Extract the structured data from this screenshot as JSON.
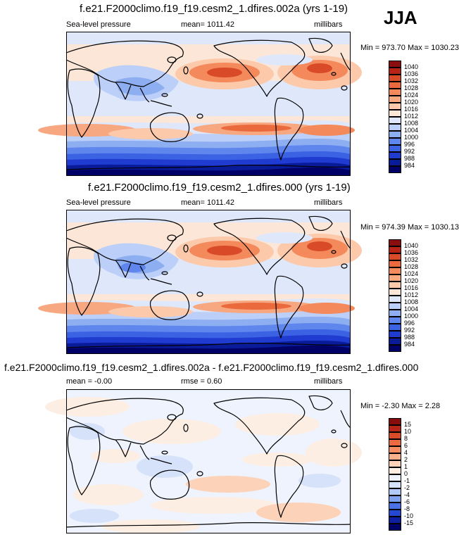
{
  "season": "JJA",
  "colors": {
    "pressure": [
      "#000066",
      "#0a1b9a",
      "#1f3bd0",
      "#3a62e3",
      "#5f86ec",
      "#8eaef2",
      "#bccff8",
      "#dfe8fb",
      "#fbe6d8",
      "#fcc9aa",
      "#f8a880",
      "#f48a5c",
      "#ea6a3e",
      "#d84a28",
      "#b82317",
      "#8a0e0e"
    ],
    "diff": [
      "#000066",
      "#0d1f9e",
      "#2547d1",
      "#4a71e6",
      "#7ea0ef",
      "#b2c8f6",
      "#d6e2fa",
      "#eef3fd",
      "#fdeee3",
      "#fcd2b8",
      "#f9b08c",
      "#f48d63",
      "#ea6b42",
      "#d84a28",
      "#b92418",
      "#870d0d"
    ]
  },
  "panels": [
    {
      "title": "f.e21.F2000climo.f19_f19.cesm2_1.dfires.002a (yrs 1-19)",
      "left_text": "Sea-level pressure",
      "center_text": "mean= 1011.42",
      "right_text": "millibars",
      "minmax": "Min = 973.70 Max = 1030.23",
      "levels": [
        "1040",
        "1036",
        "1032",
        "1028",
        "1024",
        "1020",
        "1016",
        "1012",
        "1008",
        "1004",
        "1000",
        "996",
        "992",
        "988",
        "984"
      ]
    },
    {
      "title": "f.e21.F2000climo.f19_f19.cesm2_1.dfires.000 (yrs 1-19)",
      "left_text": "Sea-level pressure",
      "center_text": "mean= 1011.42",
      "right_text": "millibars",
      "minmax": "Min = 974.39 Max = 1030.13",
      "levels": [
        "1040",
        "1036",
        "1032",
        "1028",
        "1024",
        "1020",
        "1016",
        "1012",
        "1008",
        "1004",
        "1000",
        "996",
        "992",
        "988",
        "984"
      ]
    },
    {
      "title": "f.e21.F2000climo.f19_f19.cesm2_1.dfires.002a - f.e21.F2000climo.f19_f19.cesm2_1.dfires.000",
      "left_text": "mean =  -0.00",
      "center_text": "rmse =  0.60",
      "right_text": "millibars",
      "minmax": "Min =  -2.30 Max =  2.28",
      "levels": [
        "15",
        "10",
        "8",
        "6",
        "4",
        "2",
        "1",
        "0",
        "-1",
        "-2",
        "-4",
        "-6",
        "-8",
        "-10",
        "-15"
      ]
    }
  ]
}
